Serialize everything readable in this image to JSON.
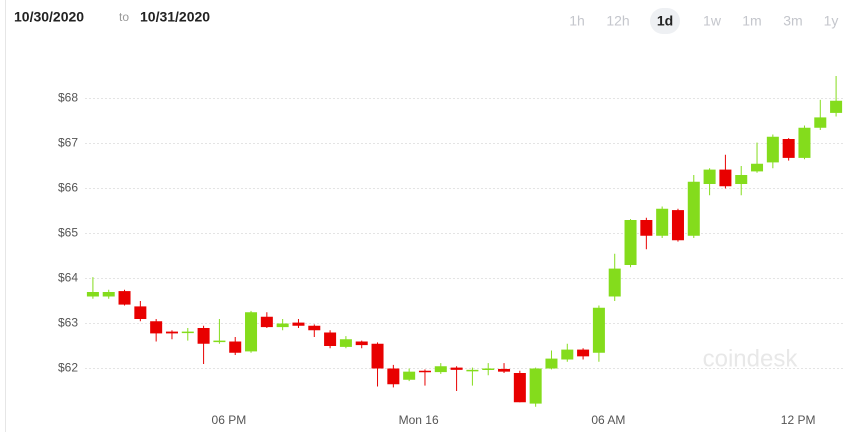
{
  "header": {
    "from": "10/30/2020",
    "sep": "to",
    "to": "10/31/2020",
    "ranges": [
      "1h",
      "12h",
      "1d",
      "1w",
      "1m",
      "3m",
      "1y"
    ],
    "selected_range": "1d"
  },
  "watermark": "coindesk",
  "chart_data": {
    "type": "candlestick",
    "categories": [
      null,
      null,
      null,
      null,
      null,
      null,
      null,
      null,
      null,
      "06 PM",
      null,
      null,
      null,
      null,
      null,
      null,
      null,
      null,
      null,
      null,
      null,
      "Mon 16",
      null,
      null,
      null,
      null,
      null,
      null,
      null,
      null,
      null,
      null,
      null,
      "06 AM",
      null,
      null,
      null,
      null,
      null,
      null,
      null,
      null,
      null,
      null,
      null,
      "12 PM",
      null,
      null
    ],
    "open": [
      63.6,
      63.6,
      63.72,
      63.38,
      63.05,
      62.82,
      62.8,
      62.9,
      62.6,
      62.6,
      62.38,
      63.15,
      62.92,
      63.02,
      62.95,
      62.8,
      62.48,
      62.6,
      62.55,
      62.0,
      61.75,
      61.95,
      61.92,
      62.02,
      61.95,
      61.97,
      61.99,
      61.9,
      61.22,
      62.0,
      62.2,
      62.42,
      62.35,
      63.6,
      64.3,
      65.3,
      64.95,
      65.52,
      64.95,
      66.1,
      66.42,
      66.1,
      66.38,
      66.58,
      67.1,
      66.68,
      67.35,
      67.68
    ],
    "high": [
      64.03,
      63.75,
      63.75,
      63.5,
      63.1,
      62.85,
      62.9,
      62.95,
      63.1,
      62.7,
      63.28,
      63.25,
      63.1,
      63.1,
      62.98,
      62.85,
      62.72,
      62.62,
      62.58,
      62.08,
      62.0,
      61.98,
      62.12,
      62.05,
      62.02,
      62.12,
      62.12,
      61.95,
      62.02,
      62.4,
      62.55,
      62.45,
      63.4,
      64.55,
      65.32,
      65.35,
      65.6,
      65.55,
      66.3,
      66.45,
      66.75,
      66.5,
      67.02,
      67.2,
      67.12,
      67.4,
      67.97,
      68.5
    ],
    "low": [
      63.55,
      63.55,
      63.4,
      63.05,
      62.6,
      62.65,
      62.62,
      62.1,
      62.55,
      62.3,
      62.35,
      62.9,
      62.85,
      62.9,
      62.7,
      62.45,
      62.45,
      62.45,
      61.6,
      61.58,
      61.72,
      61.62,
      61.88,
      61.5,
      61.62,
      61.85,
      61.9,
      61.25,
      61.15,
      61.98,
      62.15,
      62.2,
      62.15,
      63.5,
      64.25,
      64.65,
      64.9,
      64.82,
      64.9,
      65.85,
      66.0,
      65.85,
      66.35,
      66.45,
      66.62,
      66.65,
      67.3,
      67.6
    ],
    "close": [
      63.7,
      63.7,
      63.42,
      63.1,
      62.78,
      62.78,
      62.82,
      62.55,
      62.62,
      62.35,
      63.25,
      62.92,
      63.0,
      62.95,
      62.85,
      62.5,
      62.65,
      62.52,
      62.0,
      61.65,
      61.93,
      61.92,
      62.05,
      61.97,
      61.97,
      62.0,
      61.93,
      61.25,
      62.0,
      62.22,
      62.42,
      62.27,
      63.35,
      64.22,
      65.3,
      64.95,
      65.55,
      64.85,
      66.15,
      66.42,
      66.05,
      66.3,
      66.55,
      67.15,
      66.68,
      67.35,
      67.58,
      67.95
    ],
    "up_color": "#84dc1c",
    "down_color": "#e80000",
    "ylim": [
      61.1,
      69.3
    ],
    "yticks": [
      {
        "value": 62,
        "label": "$62"
      },
      {
        "value": 63,
        "label": "$63"
      },
      {
        "value": 64,
        "label": "$64"
      },
      {
        "value": 65,
        "label": "$65"
      },
      {
        "value": 66,
        "label": "$66"
      },
      {
        "value": 67,
        "label": "$67"
      },
      {
        "value": 68,
        "label": "$68"
      }
    ],
    "grid": true
  }
}
